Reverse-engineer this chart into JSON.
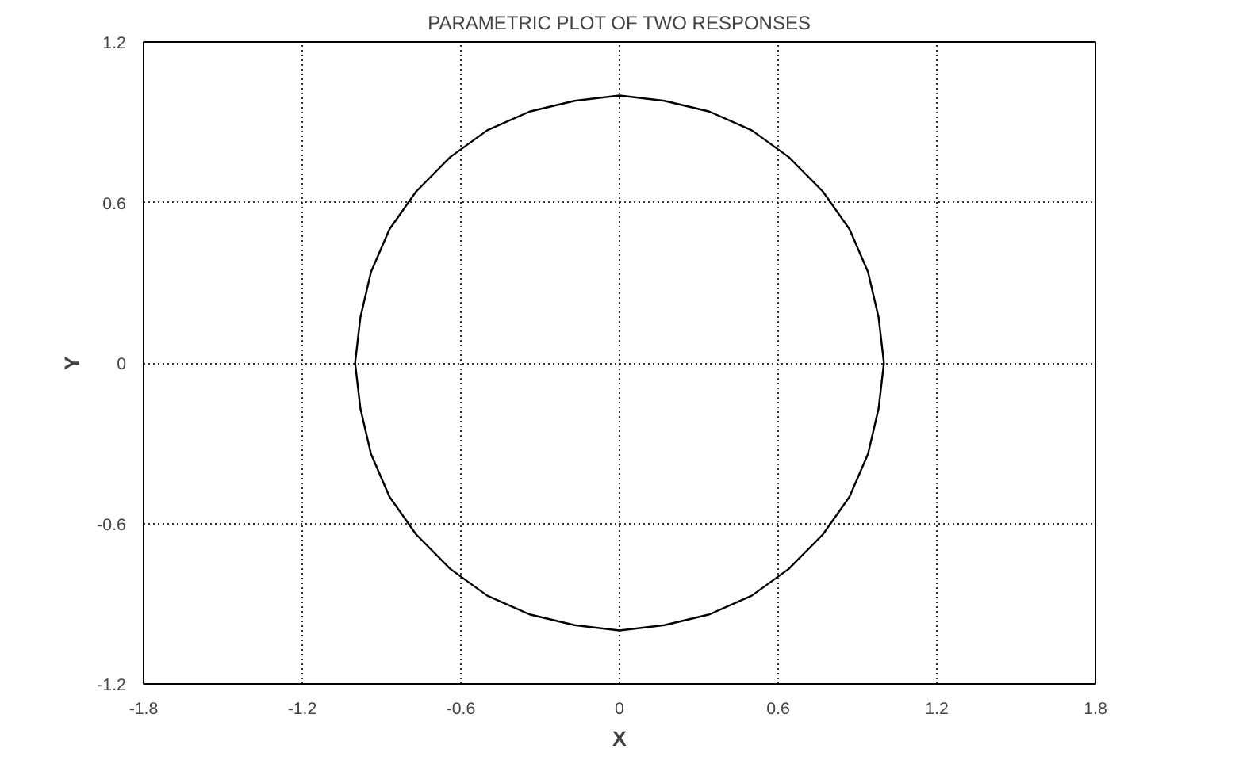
{
  "chart_data": {
    "type": "line",
    "title": "PARAMETRIC PLOT OF TWO RESPONSES",
    "xlabel": "X",
    "ylabel": "Y",
    "xlim": [
      -1.8,
      1.8
    ],
    "ylim": [
      -1.2,
      1.2
    ],
    "xticks": [
      -1.8,
      -1.2,
      -0.6,
      0,
      0.6,
      1.2,
      1.8
    ],
    "yticks": [
      -1.2,
      -0.6,
      0,
      0.6,
      1.2
    ],
    "grid": true,
    "line_style": "solid",
    "marker": "none",
    "series": [
      {
        "color": "#000000",
        "x": [
          -1,
          -0.98,
          -0.94,
          -0.87,
          -0.77,
          -0.64,
          -0.5,
          -0.34,
          -0.17,
          0,
          0.17,
          0.34,
          0.5,
          0.64,
          0.77,
          0.87,
          0.94,
          0.98,
          1,
          0.98,
          0.94,
          0.87,
          0.77,
          0.64,
          0.5,
          0.34,
          0.17,
          0,
          -0.17,
          -0.34,
          -0.5,
          -0.64,
          -0.77,
          -0.87,
          -0.94,
          -0.98,
          -1,
          -0.98
        ],
        "values": [
          0,
          0.17,
          0.34,
          0.5,
          0.64,
          0.77,
          0.87,
          0.94,
          0.98,
          1,
          0.98,
          0.94,
          0.87,
          0.77,
          0.64,
          0.5,
          0.34,
          0.17,
          0,
          -0.17,
          -0.34,
          -0.5,
          -0.64,
          -0.77,
          -0.87,
          -0.94,
          -0.98,
          -1,
          -0.98,
          -0.94,
          -0.87,
          -0.77,
          -0.64,
          -0.5,
          -0.34,
          -0.17,
          0,
          0.17
        ]
      }
    ]
  }
}
